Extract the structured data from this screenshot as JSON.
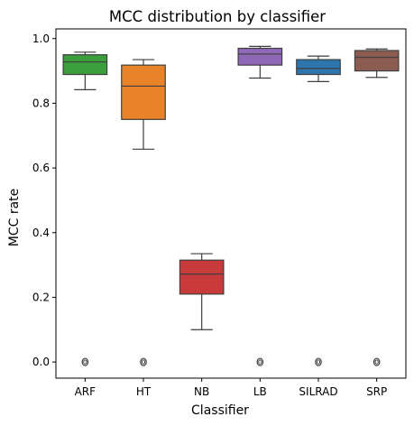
{
  "chart_data": {
    "type": "box",
    "title": "MCC distribution by classifier",
    "xlabel": "Classifier",
    "ylabel": "MCC rate",
    "ylim": [
      -0.05,
      1.03
    ],
    "yticks": [
      0.0,
      0.2,
      0.4,
      0.6,
      0.8,
      1.0
    ],
    "ytick_labels": [
      "0.0",
      "0.2",
      "0.4",
      "0.6",
      "0.8",
      "1.0"
    ],
    "categories": [
      "ARF",
      "HT",
      "NB",
      "LB",
      "SILRAD",
      "SRP"
    ],
    "boxes": [
      {
        "category": "ARF",
        "color": "#3a9e3a",
        "whisker_low": 0.842,
        "q1": 0.889,
        "median": 0.928,
        "q3": 0.95,
        "whisker_high": 0.958,
        "outliers": [
          0.0
        ]
      },
      {
        "category": "HT",
        "color": "#e8832a",
        "whisker_low": 0.658,
        "q1": 0.75,
        "median": 0.853,
        "q3": 0.918,
        "whisker_high": 0.935,
        "outliers": [
          0.0
        ]
      },
      {
        "category": "NB",
        "color": "#c93a3b",
        "whisker_low": 0.1,
        "q1": 0.21,
        "median": 0.272,
        "q3": 0.315,
        "whisker_high": 0.335,
        "outliers": []
      },
      {
        "category": "LB",
        "color": "#9068b8",
        "whisker_low": 0.878,
        "q1": 0.918,
        "median": 0.952,
        "q3": 0.97,
        "whisker_high": 0.976,
        "outliers": [
          0.0
        ]
      },
      {
        "category": "SILRAD",
        "color": "#2f75ad",
        "whisker_low": 0.867,
        "q1": 0.889,
        "median": 0.908,
        "q3": 0.935,
        "whisker_high": 0.946,
        "outliers": [
          0.0
        ]
      },
      {
        "category": "SRP",
        "color": "#8c5c50",
        "whisker_low": 0.88,
        "q1": 0.9,
        "median": 0.942,
        "q3": 0.963,
        "whisker_high": 0.968,
        "outliers": [
          0.0
        ]
      }
    ]
  }
}
